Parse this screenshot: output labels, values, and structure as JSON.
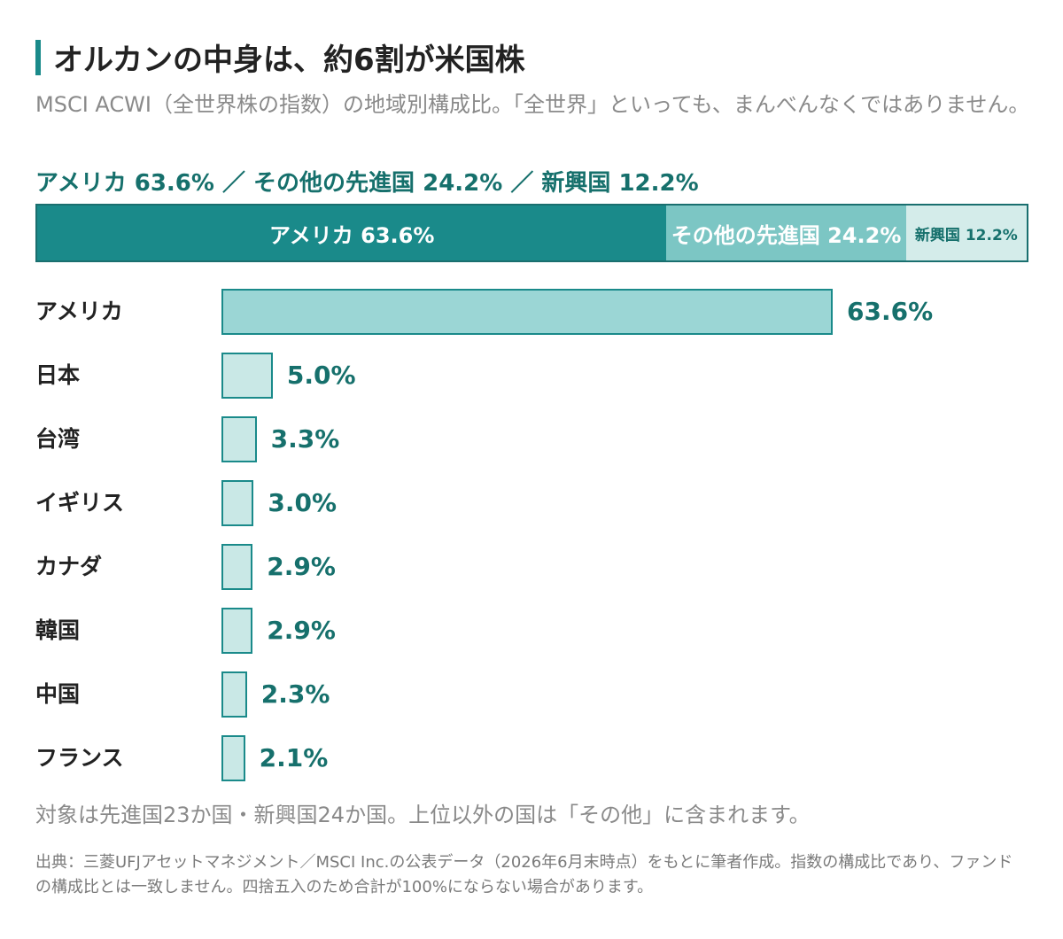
{
  "title": "オルカンの中身は、約6割が米国株",
  "subtitle": "MSCI ACWI（全世界株の指数）の地域別構成比。「全世界」といっても、まんべんなくではありません。",
  "summary": "アメリカ 63.6% ／ その他の先進国 24.2% ／ 新興国 12.2%",
  "colors": {
    "accent": "#1a8a8a",
    "dark_text": "#16706c",
    "stack_us": "#1a8a8a",
    "stack_other": "#7cc6c4",
    "stack_em": "#d4ecea",
    "bar_top": "#9bd6d5",
    "bar_other": "#c9e8e6"
  },
  "chart_data": [
    {
      "type": "bar",
      "orientation": "horizontal",
      "stacked": true,
      "series": [
        {
          "name": "アメリカ",
          "value": 63.6,
          "label": "アメリカ 63.6%"
        },
        {
          "name": "その他の先進国",
          "value": 24.2,
          "label": "その他の先進国 24.2%"
        },
        {
          "name": "新興国",
          "value": 12.2,
          "label": "新興国 12.2%"
        }
      ],
      "xlim": [
        0,
        100
      ]
    },
    {
      "type": "bar",
      "orientation": "horizontal",
      "categories": [
        "アメリカ",
        "日本",
        "台湾",
        "イギリス",
        "カナダ",
        "韓国",
        "中国",
        "フランス"
      ],
      "values": [
        63.6,
        5.0,
        3.3,
        3.0,
        2.9,
        2.9,
        2.3,
        2.1
      ],
      "value_labels": [
        "63.6%",
        "5.0%",
        "3.3%",
        "3.0%",
        "2.9%",
        "2.9%",
        "2.3%",
        "2.1%"
      ],
      "xlim": [
        0,
        63.6
      ]
    }
  ],
  "note": "対象は先進国23か国・新興国24か国。上位以外の国は「その他」に含まれます。",
  "source": "出典：三菱UFJアセットマネジメント／MSCI Inc.の公表データ（2026年6月末時点）をもとに筆者作成。指数の構成比であり、ファンドの構成比とは一致しません。四捨五入のため合計が100%にならない場合があります。"
}
